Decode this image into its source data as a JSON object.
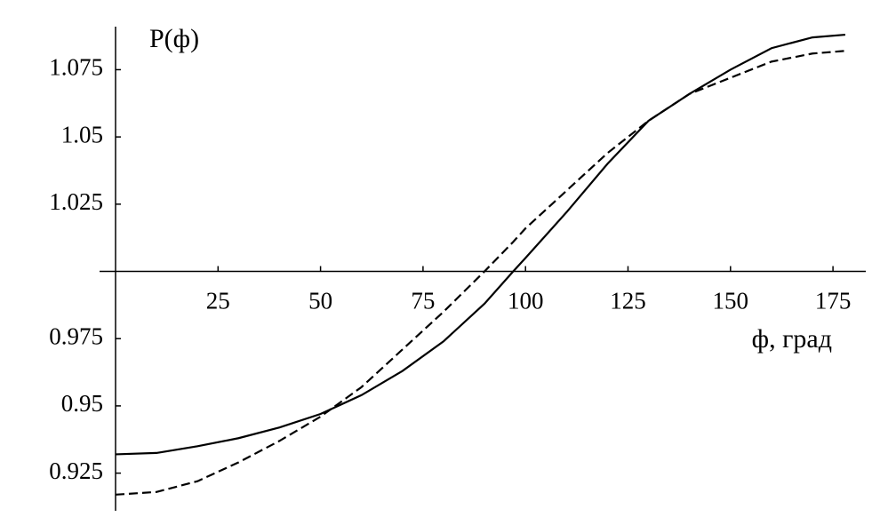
{
  "chart_data": {
    "type": "line",
    "y_label": "P(ф)",
    "x_label": "ф, град",
    "xlim": [
      0,
      183
    ],
    "ylim": [
      0.911,
      1.091
    ],
    "xticks": [
      25,
      50,
      75,
      100,
      125,
      150,
      175
    ],
    "yticks": [
      0.925,
      0.95,
      0.975,
      1.025,
      1.05,
      1.075
    ],
    "x": [
      0,
      10,
      20,
      30,
      40,
      50,
      60,
      70,
      80,
      90,
      97,
      100,
      110,
      120,
      130,
      140,
      150,
      160,
      170,
      178
    ],
    "series": [
      {
        "color": "#000000",
        "dash": false,
        "values": [
          0.932,
          0.9325,
          0.935,
          0.938,
          0.942,
          0.947,
          0.954,
          0.963,
          0.974,
          0.988,
          1.0,
          1.005,
          1.022,
          1.04,
          1.056,
          1.066,
          1.075,
          1.083,
          1.087,
          1.088
        ]
      },
      {
        "color": "#000000",
        "dash": true,
        "values": [
          0.917,
          0.918,
          0.922,
          0.929,
          0.937,
          0.946,
          0.957,
          0.971,
          0.985,
          1.0,
          1.011,
          1.016,
          1.03,
          1.044,
          1.056,
          1.066,
          1.072,
          1.078,
          1.081,
          1.082
        ]
      }
    ]
  }
}
